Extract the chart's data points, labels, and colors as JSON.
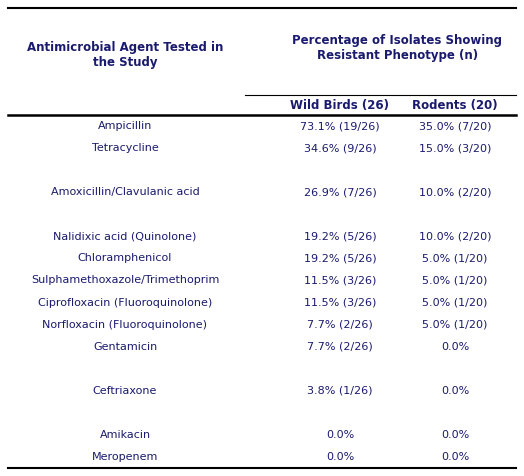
{
  "title_col1": "Antimicrobial Agent Tested in\nthe Study",
  "title_col2": "Percentage of Isolates Showing\nResistant Phenotype (n)",
  "subtitle_col2a": "Wild Birds (26)",
  "subtitle_col2b": "Rodents (20)",
  "rows": [
    [
      "Ampicillin",
      "73.1% (19/26)",
      "35.0% (7/20)"
    ],
    [
      "Tetracycline",
      "34.6% (9/26)",
      "15.0% (3/20)"
    ],
    [
      "",
      "",
      ""
    ],
    [
      "Amoxicillin/Clavulanic acid",
      "26.9% (7/26)",
      "10.0% (2/20)"
    ],
    [
      "",
      "",
      ""
    ],
    [
      "Nalidixic acid (Quinolone)",
      "19.2% (5/26)",
      "10.0% (2/20)"
    ],
    [
      "Chloramphenicol",
      "19.2% (5/26)",
      "5.0% (1/20)"
    ],
    [
      "Sulphamethoxazole/Trimethoprim",
      "11.5% (3/26)",
      "5.0% (1/20)"
    ],
    [
      "Ciprofloxacin (Fluoroquinolone)",
      "11.5% (3/26)",
      "5.0% (1/20)"
    ],
    [
      "Norfloxacin (Fluoroquinolone)",
      "7.7% (2/26)",
      "5.0% (1/20)"
    ],
    [
      "Gentamicin",
      "7.7% (2/26)",
      "0.0%"
    ],
    [
      "",
      "",
      ""
    ],
    [
      "Ceftriaxone",
      "3.8% (1/26)",
      "0.0%"
    ],
    [
      "",
      "",
      ""
    ],
    [
      "Amikacin",
      "0.0%",
      "0.0%"
    ],
    [
      "Meropenem",
      "0.0%",
      "0.0%"
    ]
  ],
  "bg_color": "#ffffff",
  "text_color": "#1a1a6e",
  "header_fontsize": 8.5,
  "subheader_fontsize": 8.5,
  "cell_fontsize": 8.0,
  "fig_width": 5.24,
  "fig_height": 4.76
}
